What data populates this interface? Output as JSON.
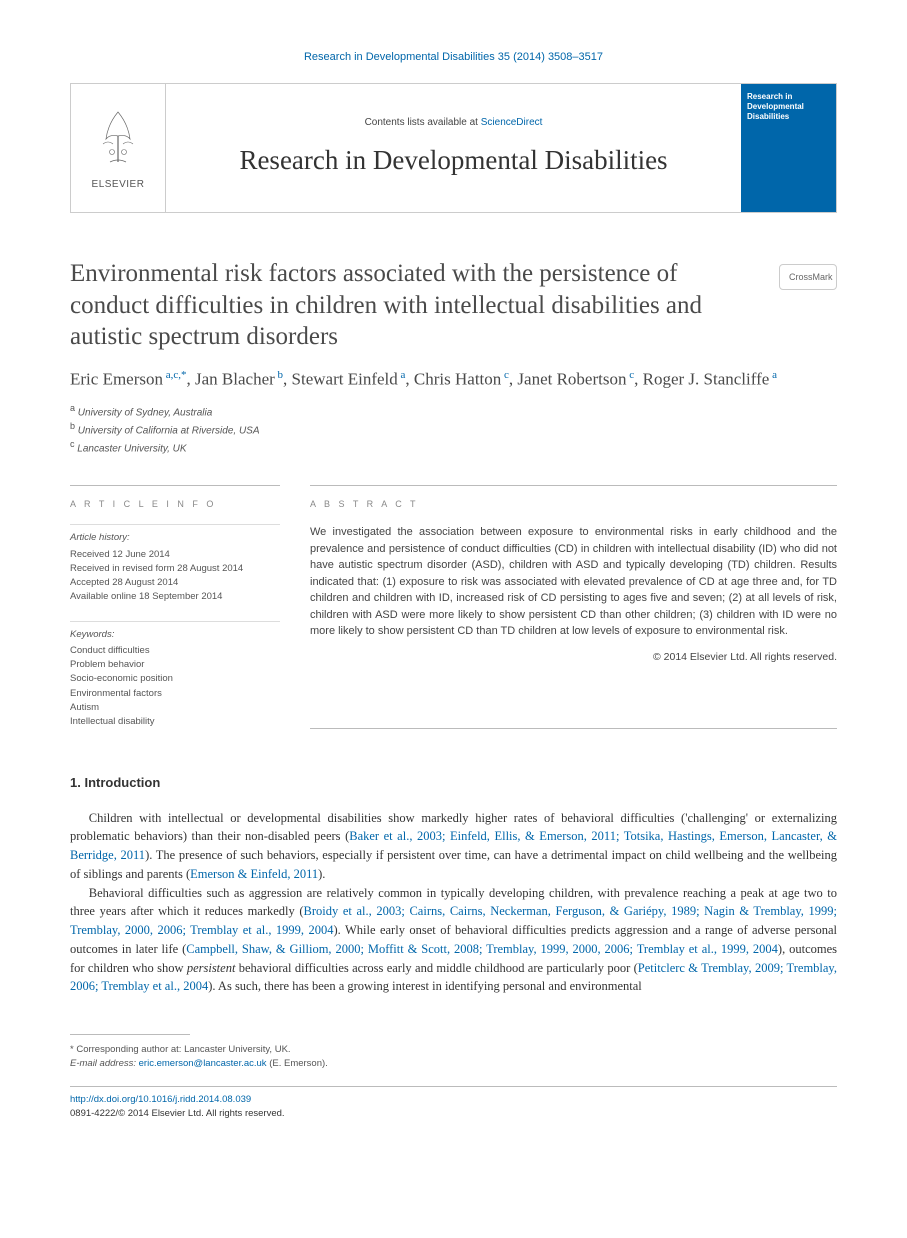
{
  "citation": "Research in Developmental Disabilities 35 (2014) 3508–3517",
  "masthead": {
    "publisher": "ELSEVIER",
    "contents_prefix": "Contents lists available at ",
    "contents_link": "ScienceDirect",
    "journal": "Research in Developmental Disabilities",
    "cover_text": "Research in Developmental Disabilities"
  },
  "crossmark_label": "CrossMark",
  "article": {
    "title": "Environmental risk factors associated with the persistence of conduct difficulties in children with intellectual disabilities and autistic spectrum disorders",
    "authors_html": "Eric Emerson<sup> a,c,*</sup>, Jan Blacher<sup> b</sup>, Stewart Einfeld<sup> a</sup>, Chris Hatton<sup> c</sup>, Janet Robertson<sup> c</sup>, Roger J. Stancliffe<sup> a</sup>",
    "affiliations": [
      {
        "sup": "a",
        "text": "University of Sydney, Australia"
      },
      {
        "sup": "b",
        "text": "University of California at Riverside, USA"
      },
      {
        "sup": "c",
        "text": "Lancaster University, UK"
      }
    ]
  },
  "info": {
    "header": "A R T I C L E   I N F O",
    "history_label": "Article history:",
    "history": [
      "Received 12 June 2014",
      "Received in revised form 28 August 2014",
      "Accepted 28 August 2014",
      "Available online 18 September 2014"
    ],
    "keywords_label": "Keywords:",
    "keywords": [
      "Conduct difficulties",
      "Problem behavior",
      "Socio-economic position",
      "Environmental factors",
      "Autism",
      "Intellectual disability"
    ]
  },
  "abstract": {
    "header": "A B S T R A C T",
    "body": "We investigated the association between exposure to environmental risks in early childhood and the prevalence and persistence of conduct difficulties (CD) in children with intellectual disability (ID) who did not have autistic spectrum disorder (ASD), children with ASD and typically developing (TD) children. Results indicated that: (1) exposure to risk was associated with elevated prevalence of CD at age three and, for TD children and children with ID, increased risk of CD persisting to ages five and seven; (2) at all levels of risk, children with ASD were more likely to show persistent CD than other children; (3) children with ID were no more likely to show persistent CD than TD children at low levels of exposure to environmental risk.",
    "copyright": "© 2014 Elsevier Ltd. All rights reserved."
  },
  "sections": {
    "intro_heading": "1. Introduction",
    "para1_pre": "Children with intellectual or developmental disabilities show markedly higher rates of behavioral difficulties ('challenging' or externalizing problematic behaviors) than their non-disabled peers (",
    "para1_cite1": "Baker et al., 2003; Einfeld, Ellis, & Emerson, 2011; Totsika, Hastings, Emerson, Lancaster, & Berridge, 2011",
    "para1_mid": "). The presence of such behaviors, especially if persistent over time, can have a detrimental impact on child wellbeing and the wellbeing of siblings and parents (",
    "para1_cite2": "Emerson & Einfeld, 2011",
    "para1_post": ").",
    "para2_pre": "Behavioral difficulties such as aggression are relatively common in typically developing children, with prevalence reaching a peak at age two to three years after which it reduces markedly (",
    "para2_cite1": "Broidy et al., 2003; Cairns, Cairns, Neckerman, Ferguson, & Gariépy, 1989; Nagin & Tremblay, 1999; Tremblay, 2000, 2006; Tremblay et al., 1999, 2004",
    "para2_mid1": "). While early onset of behavioral difficulties predicts aggression and a range of adverse personal outcomes in later life (",
    "para2_cite2": "Campbell, Shaw, & Gilliom, 2000; Moffitt & Scott, 2008; Tremblay, 1999, 2000, 2006; Tremblay et al., 1999, 2004",
    "para2_mid2": "), outcomes for children who show ",
    "para2_persistent": "persistent",
    "para2_mid3": " behavioral difficulties across early and middle childhood are particularly poor (",
    "para2_cite3": "Petitclerc & Tremblay, 2009; Tremblay, 2006; Tremblay et al., 2004",
    "para2_post": "). As such, there has been a growing interest in identifying personal and environmental"
  },
  "footnotes": {
    "corr": "* Corresponding author at: Lancaster University, UK.",
    "email_label": "E-mail address: ",
    "email": "eric.emerson@lancaster.ac.uk",
    "email_suffix": " (E. Emerson)."
  },
  "doi": {
    "url": "http://dx.doi.org/10.1016/j.ridd.2014.08.039",
    "issn_line": "0891-4222/© 2014 Elsevier Ltd. All rights reserved."
  },
  "colors": {
    "link": "#0066aa",
    "text": "#333333",
    "muted": "#555555",
    "rule": "#bbbbbb",
    "cover_bg": "#0066aa"
  }
}
